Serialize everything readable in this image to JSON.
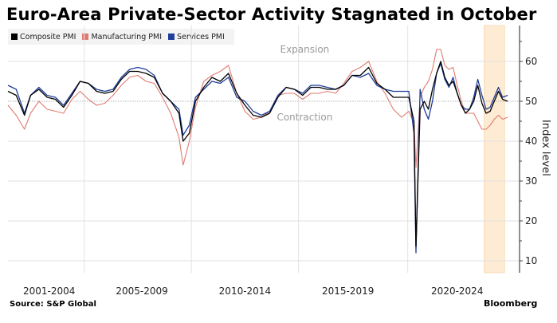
{
  "chart_data": {
    "type": "line",
    "title": "Euro-Area Private-Sector Activity Stagnated in October",
    "ylabel": "Index level",
    "xlabel": "",
    "ylim": [
      7,
      68
    ],
    "xlim": [
      2000.5,
      2025.0
    ],
    "y_ticks": [
      10,
      20,
      30,
      40,
      50,
      60
    ],
    "x_tick_labels": [
      "2001-2004",
      "2005-2009",
      "2010-2014",
      "2015-2019",
      "2020-2024"
    ],
    "x_tick_centers": [
      2002.5,
      2007.0,
      2012.0,
      2017.0,
      2022.3
    ],
    "period_boundaries": [
      2004.2,
      2009.4,
      2014.6,
      2019.9
    ],
    "reference_line": 50,
    "annotations": [
      {
        "text": "Expansion",
        "x": 2014.9,
        "y": 63
      },
      {
        "text": "Contraction",
        "x": 2014.9,
        "y": 46
      }
    ],
    "highlight_range": [
      2023.6,
      2024.6
    ],
    "legend_position": "top-left",
    "grid": true,
    "x": [
      2000.5,
      2000.9,
      2001.3,
      2001.6,
      2002.0,
      2002.4,
      2002.8,
      2003.2,
      2003.6,
      2004.0,
      2004.4,
      2004.8,
      2005.2,
      2005.6,
      2006.0,
      2006.4,
      2006.8,
      2007.2,
      2007.6,
      2008.0,
      2008.4,
      2008.8,
      2009.0,
      2009.3,
      2009.6,
      2010.0,
      2010.4,
      2010.8,
      2011.2,
      2011.6,
      2012.0,
      2012.4,
      2012.8,
      2013.2,
      2013.6,
      2014.0,
      2014.4,
      2014.8,
      2015.2,
      2015.6,
      2016.0,
      2016.4,
      2016.8,
      2017.2,
      2017.6,
      2018.0,
      2018.4,
      2018.8,
      2019.2,
      2019.6,
      2019.95,
      2020.2,
      2020.3,
      2020.5,
      2020.7,
      2020.9,
      2021.1,
      2021.3,
      2021.5,
      2021.7,
      2021.9,
      2022.1,
      2022.3,
      2022.5,
      2022.7,
      2022.9,
      2023.1,
      2023.3,
      2023.5,
      2023.7,
      2023.9,
      2024.1,
      2024.3,
      2024.5,
      2024.75
    ],
    "series": [
      {
        "name": "Composite PMI",
        "color": "#000000",
        "values": [
          52.5,
          51.5,
          46.5,
          51.5,
          53.0,
          51.0,
          50.5,
          48.5,
          51.5,
          55.0,
          54.5,
          52.5,
          52.0,
          52.5,
          55.5,
          57.5,
          57.5,
          57.0,
          56.0,
          52.0,
          50.0,
          47.0,
          40.0,
          42.0,
          50.0,
          53.5,
          56.0,
          55.0,
          57.0,
          52.0,
          49.0,
          46.5,
          46.0,
          47.0,
          51.0,
          53.5,
          53.0,
          51.5,
          53.5,
          53.5,
          53.0,
          53.0,
          54.0,
          56.5,
          56.5,
          58.5,
          54.5,
          53.0,
          51.0,
          51.0,
          51.0,
          45.0,
          13.6,
          48.0,
          50.0,
          48.0,
          53.0,
          57.0,
          60.0,
          56.0,
          54.0,
          55.0,
          52.0,
          49.0,
          47.0,
          48.0,
          50.0,
          54.0,
          49.5,
          47.0,
          47.5,
          50.0,
          52.5,
          50.5,
          50.0
        ]
      },
      {
        "name": "Manufacturing PMI",
        "color": "#e07b72",
        "values": [
          49.0,
          46.5,
          43.0,
          47.0,
          50.0,
          48.0,
          47.5,
          47.0,
          50.5,
          52.5,
          50.5,
          49.0,
          49.5,
          51.5,
          54.0,
          56.0,
          56.5,
          55.0,
          54.5,
          51.0,
          47.0,
          41.0,
          34.0,
          40.0,
          48.5,
          55.0,
          56.5,
          57.5,
          59.0,
          52.0,
          47.5,
          45.5,
          46.0,
          47.5,
          51.5,
          52.0,
          52.0,
          50.5,
          52.0,
          52.0,
          52.5,
          52.0,
          54.5,
          57.5,
          58.5,
          60.0,
          55.0,
          52.0,
          48.0,
          46.0,
          47.5,
          44.5,
          33.4,
          51.0,
          53.5,
          55.0,
          58.0,
          63.0,
          63.0,
          59.0,
          58.0,
          58.5,
          54.0,
          50.0,
          47.0,
          47.0,
          47.0,
          45.0,
          43.0,
          43.0,
          44.0,
          45.5,
          46.5,
          45.5,
          46.0
        ]
      },
      {
        "name": "Services PMI",
        "color": "#1f3d99",
        "values": [
          54.0,
          53.0,
          47.0,
          51.5,
          53.5,
          51.5,
          51.0,
          49.0,
          52.0,
          55.0,
          54.5,
          53.0,
          52.5,
          53.0,
          56.0,
          58.0,
          58.5,
          58.0,
          56.5,
          52.0,
          50.0,
          48.0,
          41.5,
          44.0,
          51.0,
          53.0,
          55.0,
          54.5,
          56.0,
          51.0,
          50.0,
          47.5,
          46.5,
          47.5,
          51.5,
          53.5,
          53.0,
          52.0,
          54.0,
          54.0,
          53.5,
          53.0,
          54.0,
          56.5,
          56.0,
          57.0,
          54.0,
          53.0,
          52.5,
          52.5,
          52.5,
          42.0,
          12.0,
          53.0,
          48.0,
          45.5,
          50.0,
          57.0,
          59.5,
          55.5,
          53.5,
          56.0,
          52.0,
          49.0,
          48.0,
          48.0,
          51.0,
          55.5,
          51.5,
          48.0,
          48.5,
          51.0,
          53.5,
          51.0,
          51.5
        ]
      }
    ],
    "source": "Source: S&P Global",
    "brand": "Bloomberg"
  },
  "legend": [
    {
      "label": "Composite PMI",
      "color": "#000000"
    },
    {
      "label": "Manufacturing PMI",
      "color": "#e07b72"
    },
    {
      "label": "Services PMI",
      "color": "#1f3d99"
    }
  ],
  "colors": {
    "highlight": "#fdebd3",
    "grid": "#e2e2e2",
    "ref_line": "#9a9a9a",
    "axis": "#444444"
  }
}
